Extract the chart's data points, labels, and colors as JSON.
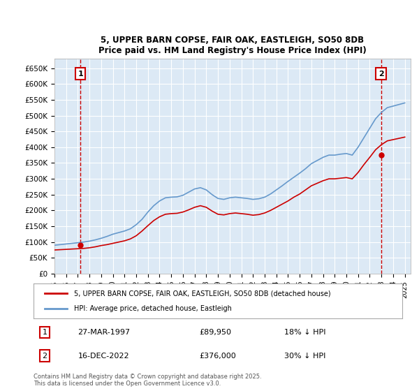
{
  "title": "5, UPPER BARN COPSE, FAIR OAK, EASTLEIGH, SO50 8DB",
  "subtitle": "Price paid vs. HM Land Registry's House Price Index (HPI)",
  "ylabel": "",
  "xlabel": "",
  "background_color": "#dce9f5",
  "plot_bg_color": "#dce9f5",
  "fig_bg_color": "#ffffff",
  "ylim": [
    0,
    680000
  ],
  "yticks": [
    0,
    50000,
    100000,
    150000,
    200000,
    250000,
    300000,
    350000,
    400000,
    450000,
    500000,
    550000,
    600000,
    650000
  ],
  "ytick_labels": [
    "£0",
    "£50K",
    "£100K",
    "£150K",
    "£200K",
    "£250K",
    "£300K",
    "£350K",
    "£400K",
    "£450K",
    "£500K",
    "£550K",
    "£600K",
    "£650K"
  ],
  "xlim_start": 1995.0,
  "xlim_end": 2025.5,
  "sale1_date": 1997.23,
  "sale1_price": 89950,
  "sale1_label": "27-MAR-1997",
  "sale1_amount": "£89,950",
  "sale1_hpi": "18% ↓ HPI",
  "sale2_date": 2022.96,
  "sale2_price": 376000,
  "sale2_label": "16-DEC-2022",
  "sale2_amount": "£376,000",
  "sale2_hpi": "30% ↓ HPI",
  "red_line_color": "#cc0000",
  "blue_line_color": "#6699cc",
  "dashed_line_color": "#cc0000",
  "legend1_label": "5, UPPER BARN COPSE, FAIR OAK, EASTLEIGH, SO50 8DB (detached house)",
  "legend2_label": "HPI: Average price, detached house, Eastleigh",
  "footer": "Contains HM Land Registry data © Crown copyright and database right 2025.\nThis data is licensed under the Open Government Licence v3.0.",
  "hpi_years": [
    1995,
    1995.5,
    1996,
    1996.5,
    1997,
    1997.5,
    1998,
    1998.5,
    1999,
    1999.5,
    2000,
    2000.5,
    2001,
    2001.5,
    2002,
    2002.5,
    2003,
    2003.5,
    2004,
    2004.5,
    2005,
    2005.5,
    2006,
    2006.5,
    2007,
    2007.5,
    2008,
    2008.5,
    2009,
    2009.5,
    2010,
    2010.5,
    2011,
    2011.5,
    2012,
    2012.5,
    2013,
    2013.5,
    2014,
    2014.5,
    2015,
    2015.5,
    2016,
    2016.5,
    2017,
    2017.5,
    2018,
    2018.5,
    2019,
    2019.5,
    2020,
    2020.5,
    2021,
    2021.5,
    2022,
    2022.5,
    2023,
    2023.5,
    2024,
    2024.5,
    2025
  ],
  "hpi_values": [
    90000,
    92000,
    94000,
    96000,
    98000,
    100000,
    103000,
    107000,
    112000,
    118000,
    125000,
    130000,
    135000,
    142000,
    155000,
    172000,
    195000,
    215000,
    230000,
    240000,
    242000,
    243000,
    248000,
    258000,
    268000,
    272000,
    265000,
    250000,
    238000,
    235000,
    240000,
    242000,
    240000,
    238000,
    235000,
    237000,
    242000,
    252000,
    265000,
    278000,
    292000,
    305000,
    318000,
    332000,
    348000,
    358000,
    368000,
    375000,
    375000,
    378000,
    380000,
    375000,
    400000,
    430000,
    460000,
    490000,
    510000,
    525000,
    530000,
    535000,
    540000
  ],
  "price_years": [
    1995,
    1995.5,
    1996,
    1996.5,
    1997,
    1997.5,
    1998,
    1998.5,
    1999,
    1999.5,
    2000,
    2000.5,
    2001,
    2001.5,
    2002,
    2002.5,
    2003,
    2003.5,
    2004,
    2004.5,
    2005,
    2005.5,
    2006,
    2006.5,
    2007,
    2007.5,
    2008,
    2008.5,
    2009,
    2009.5,
    2010,
    2010.5,
    2011,
    2011.5,
    2012,
    2012.5,
    2013,
    2013.5,
    2014,
    2014.5,
    2015,
    2015.5,
    2016,
    2016.5,
    2017,
    2017.5,
    2018,
    2018.5,
    2019,
    2019.5,
    2020,
    2020.5,
    2021,
    2021.5,
    2022,
    2022.5,
    2023,
    2023.5,
    2024,
    2024.5,
    2025
  ],
  "price_values": [
    75000,
    76000,
    77000,
    78000,
    79000,
    80000,
    82000,
    85000,
    89000,
    92000,
    96000,
    100000,
    104000,
    110000,
    120000,
    135000,
    152000,
    168000,
    180000,
    188000,
    190000,
    191000,
    195000,
    202000,
    210000,
    215000,
    210000,
    198000,
    188000,
    186000,
    190000,
    192000,
    190000,
    188000,
    185000,
    187000,
    192000,
    200000,
    210000,
    220000,
    230000,
    242000,
    252000,
    265000,
    278000,
    286000,
    294000,
    300000,
    300000,
    302000,
    304000,
    300000,
    320000,
    345000,
    368000,
    392000,
    408000,
    420000,
    424000,
    428000,
    432000
  ]
}
